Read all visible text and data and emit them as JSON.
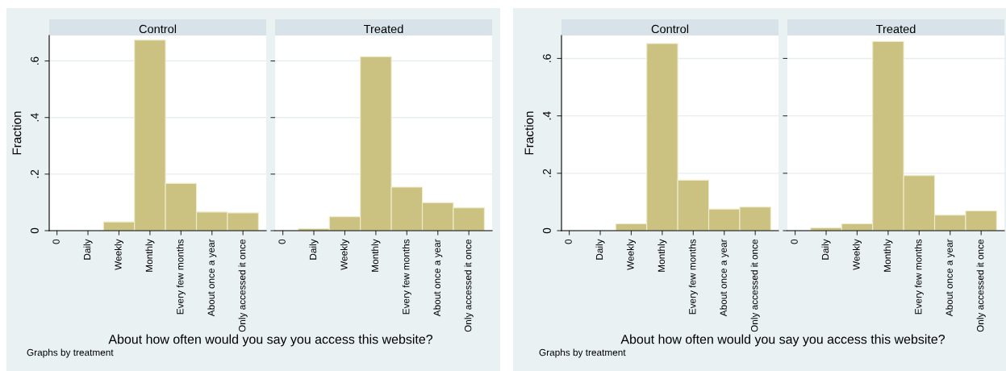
{
  "chart_data": [
    {
      "type": "bar",
      "title": "Control",
      "ylabel": "Fraction",
      "xlabel": "About how often would you say you access this website?",
      "annotations": [
        "Graphs by treatment"
      ],
      "categories": [
        "0",
        "Daily",
        "Weekly",
        "Monthly",
        "Every few months",
        "About once a year",
        "Only accessed it once"
      ],
      "color": "#cbc281",
      "values": [
        null,
        null,
        0.031,
        0.674,
        0.167,
        0.066,
        0.063
      ],
      "ylim": [
        0,
        0.69
      ],
      "yticks": [
        0,
        {
          "value": 0.2,
          "label": ".2"
        },
        {
          "value": 0.4,
          "label": ".4"
        },
        {
          "value": 0.6,
          "label": ".6"
        }
      ],
      "grid": "y"
    },
    {
      "type": "bar",
      "title": "Treated",
      "categories": [
        "0",
        "Daily",
        "Weekly",
        "Monthly",
        "Every few months",
        "About once a year",
        "Only accessed it once"
      ],
      "color": "#cbc281",
      "values": [
        null,
        0.007,
        0.049,
        0.615,
        0.154,
        0.099,
        0.081
      ],
      "ylim": [
        0,
        0.69
      ],
      "yticks": [
        {
          "value": 0,
          "label": null
        },
        {
          "value": 0.2,
          "label": null
        },
        {
          "value": 0.4,
          "label": null
        },
        {
          "value": 0.6,
          "label": null
        }
      ],
      "grid": "y",
      "tick_labels": "x"
    },
    {
      "type": "bar",
      "title": "Control",
      "ylabel": "Fraction",
      "xlabel": "About how often would you say you access this website?",
      "annotations": [
        "Graphs by treatment"
      ],
      "categories": [
        "0",
        "Daily",
        "Weekly",
        "Monthly",
        "Every few months",
        "About once a year",
        "Only accessed it once"
      ],
      "color": "#cbc281",
      "values": [
        null,
        null,
        0.024,
        0.652,
        0.176,
        0.075,
        0.082
      ],
      "ylim": [
        0,
        0.68
      ],
      "yticks": [
        0,
        {
          "value": 0.2,
          "label": ".2"
        },
        {
          "value": 0.4,
          "label": ".4"
        },
        {
          "value": 0.6,
          "label": ".6"
        }
      ],
      "grid": "y"
    },
    {
      "type": "bar",
      "title": "Treated",
      "categories": [
        "0",
        "Daily",
        "Weekly",
        "Monthly",
        "Every few months",
        "About once a year",
        "Only accessed it once"
      ],
      "color": "#cbc281",
      "values": [
        null,
        0.01,
        0.024,
        0.659,
        0.192,
        0.054,
        0.069
      ],
      "ylim": [
        0,
        0.68
      ],
      "yticks": [
        {
          "value": 0,
          "label": null
        },
        {
          "value": 0.2,
          "label": null
        },
        {
          "value": 0.4,
          "label": null
        },
        {
          "value": 0.6,
          "label": null
        }
      ],
      "grid": "y",
      "tick_labels": "x"
    }
  ]
}
